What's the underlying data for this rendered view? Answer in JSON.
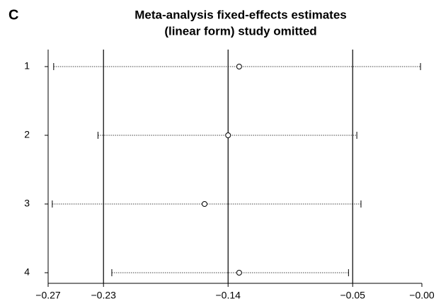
{
  "panel_label": "C",
  "chart_data": {
    "type": "forest",
    "title": [
      "Meta-analysis fixed-effects estimates",
      "(linear form) study omitted"
    ],
    "categories": [
      "1",
      "2",
      "3",
      "4"
    ],
    "estimates": [
      -0.132,
      -0.14,
      -0.157,
      -0.132
    ],
    "lower": [
      -0.266,
      -0.234,
      -0.267,
      -0.224
    ],
    "upper": [
      -0.001,
      -0.047,
      -0.044,
      -0.053
    ],
    "reference_lines": [
      -0.23,
      -0.14,
      -0.05
    ],
    "color": "#000000",
    "xlim": [
      -0.27,
      0
    ],
    "xticks": [
      {
        "value": -0.27,
        "label": "−0.27"
      },
      {
        "value": -0.23,
        "label": "−0.23"
      },
      {
        "value": -0.14,
        "label": "−0.14"
      },
      {
        "value": -0.05,
        "label": "−0.05"
      },
      {
        "value": 0,
        "label": "−0.00"
      }
    ]
  }
}
